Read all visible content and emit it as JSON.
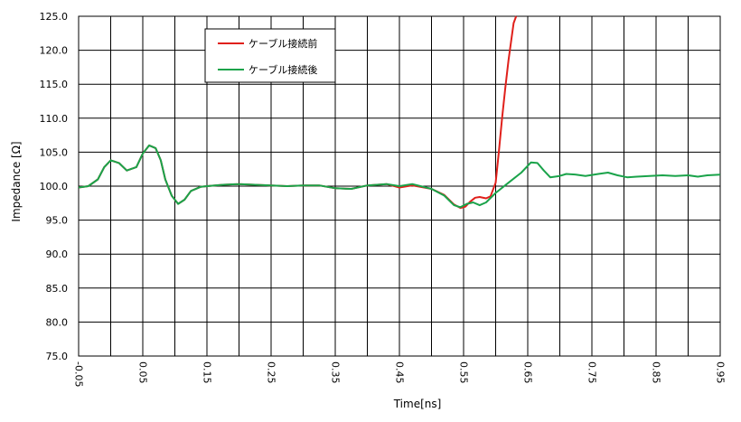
{
  "chart_data": {
    "type": "line",
    "xlabel": "Time[ns]",
    "ylabel": "Impedance [Ω]",
    "xlim": [
      -0.05,
      0.95
    ],
    "ylim": [
      75.0,
      125.0
    ],
    "x_ticks": [
      "-0.05",
      "0.05",
      "0.15",
      "0.25",
      "0.35",
      "0.45",
      "0.55",
      "0.65",
      "0.75",
      "0.85",
      "0.95"
    ],
    "y_ticks": [
      "75.0",
      "80.0",
      "85.0",
      "90.0",
      "95.0",
      "100.0",
      "105.0",
      "110.0",
      "115.0",
      "120.0",
      "125.0"
    ],
    "x_gridlines": [
      -0.05,
      0.0,
      0.05,
      0.1,
      0.15,
      0.2,
      0.25,
      0.3,
      0.35,
      0.4,
      0.45,
      0.5,
      0.55,
      0.6,
      0.65,
      0.7,
      0.75,
      0.8,
      0.85,
      0.9,
      0.95
    ],
    "y_gridlines": [
      75,
      80,
      85,
      90,
      95,
      100,
      105,
      110,
      115,
      120,
      125
    ],
    "grid": true,
    "legend_position": "top-left-inside",
    "series": [
      {
        "name": "ケーブル接続前",
        "color": "#e0201b",
        "x": [
          -0.05,
          -0.035,
          -0.02,
          -0.01,
          0.0,
          0.013,
          0.025,
          0.04,
          0.05,
          0.06,
          0.07,
          0.078,
          0.085,
          0.095,
          0.105,
          0.115,
          0.125,
          0.14,
          0.15,
          0.175,
          0.2,
          0.25,
          0.275,
          0.3,
          0.325,
          0.35,
          0.375,
          0.4,
          0.43,
          0.45,
          0.47,
          0.5,
          0.52,
          0.535,
          0.545,
          0.553,
          0.56,
          0.568,
          0.575,
          0.585,
          0.592,
          0.6,
          0.605,
          0.61,
          0.615,
          0.62,
          0.625,
          0.628,
          0.632
        ],
        "y": [
          99.8,
          100.0,
          101.0,
          102.8,
          103.8,
          103.4,
          102.3,
          102.8,
          104.8,
          106.0,
          105.6,
          103.8,
          101.0,
          98.6,
          97.4,
          98.0,
          99.3,
          99.9,
          100.0,
          100.2,
          100.3,
          100.1,
          100.0,
          100.1,
          100.1,
          99.7,
          99.6,
          100.1,
          100.3,
          99.8,
          100.1,
          99.6,
          98.7,
          97.3,
          96.8,
          97.0,
          97.7,
          98.3,
          98.4,
          98.2,
          98.5,
          100.5,
          105.0,
          110.0,
          114.5,
          118.5,
          122.0,
          124.0,
          125.0
        ]
      },
      {
        "name": "ケーブル接続後",
        "color": "#1aa34a",
        "x": [
          -0.05,
          -0.035,
          -0.02,
          -0.01,
          0.0,
          0.013,
          0.025,
          0.04,
          0.05,
          0.06,
          0.07,
          0.078,
          0.085,
          0.095,
          0.105,
          0.115,
          0.125,
          0.14,
          0.15,
          0.175,
          0.2,
          0.25,
          0.275,
          0.3,
          0.325,
          0.35,
          0.375,
          0.4,
          0.43,
          0.45,
          0.47,
          0.5,
          0.52,
          0.535,
          0.545,
          0.555,
          0.565,
          0.575,
          0.585,
          0.6,
          0.62,
          0.64,
          0.655,
          0.665,
          0.675,
          0.685,
          0.7,
          0.71,
          0.725,
          0.74,
          0.76,
          0.775,
          0.79,
          0.805,
          0.82,
          0.84,
          0.86,
          0.88,
          0.9,
          0.915,
          0.93,
          0.95
        ],
        "y": [
          99.8,
          100.0,
          101.0,
          102.8,
          103.8,
          103.4,
          102.3,
          102.8,
          104.8,
          106.0,
          105.6,
          103.8,
          101.0,
          98.6,
          97.4,
          98.0,
          99.3,
          99.9,
          100.0,
          100.2,
          100.3,
          100.1,
          100.0,
          100.1,
          100.1,
          99.7,
          99.6,
          100.1,
          100.3,
          100.0,
          100.3,
          99.6,
          98.6,
          97.2,
          96.9,
          97.4,
          97.6,
          97.2,
          97.6,
          99.0,
          100.5,
          102.0,
          103.5,
          103.4,
          102.3,
          101.3,
          101.5,
          101.8,
          101.7,
          101.5,
          101.8,
          102.0,
          101.6,
          101.3,
          101.4,
          101.5,
          101.6,
          101.5,
          101.6,
          101.4,
          101.6,
          101.7
        ]
      }
    ]
  }
}
